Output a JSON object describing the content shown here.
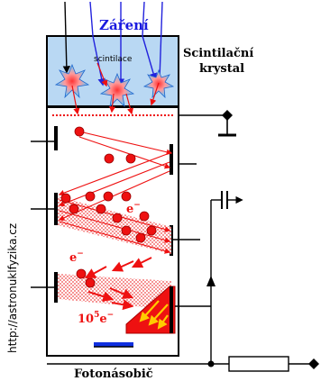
{
  "labels": {
    "radiation": "Záření",
    "scintillations": "scintilace",
    "crystal_line1": "Scintilační",
    "crystal_line2": "krystal",
    "electron_1": "e",
    "electron_1_sup": "−",
    "electron_2": "e",
    "electron_2_sup": "−",
    "electron_count_base": "10",
    "electron_count_exp": "5",
    "electron_count_e": "e",
    "electron_count_sup": "−",
    "photomultiplier": "Fotonásobič",
    "watermark": "http://astronuklfyzika.cz"
  },
  "colors": {
    "crystal_fill": "#b9d8f3",
    "ray_blue": "#2222dd",
    "arrow_red": "#ee1111",
    "label_blue": "#1a1adf",
    "flash": "#44ccff",
    "anode": "#ee1111",
    "photocathode_bar": "#1030e0",
    "yellow_arrow": "#ffcc00"
  }
}
